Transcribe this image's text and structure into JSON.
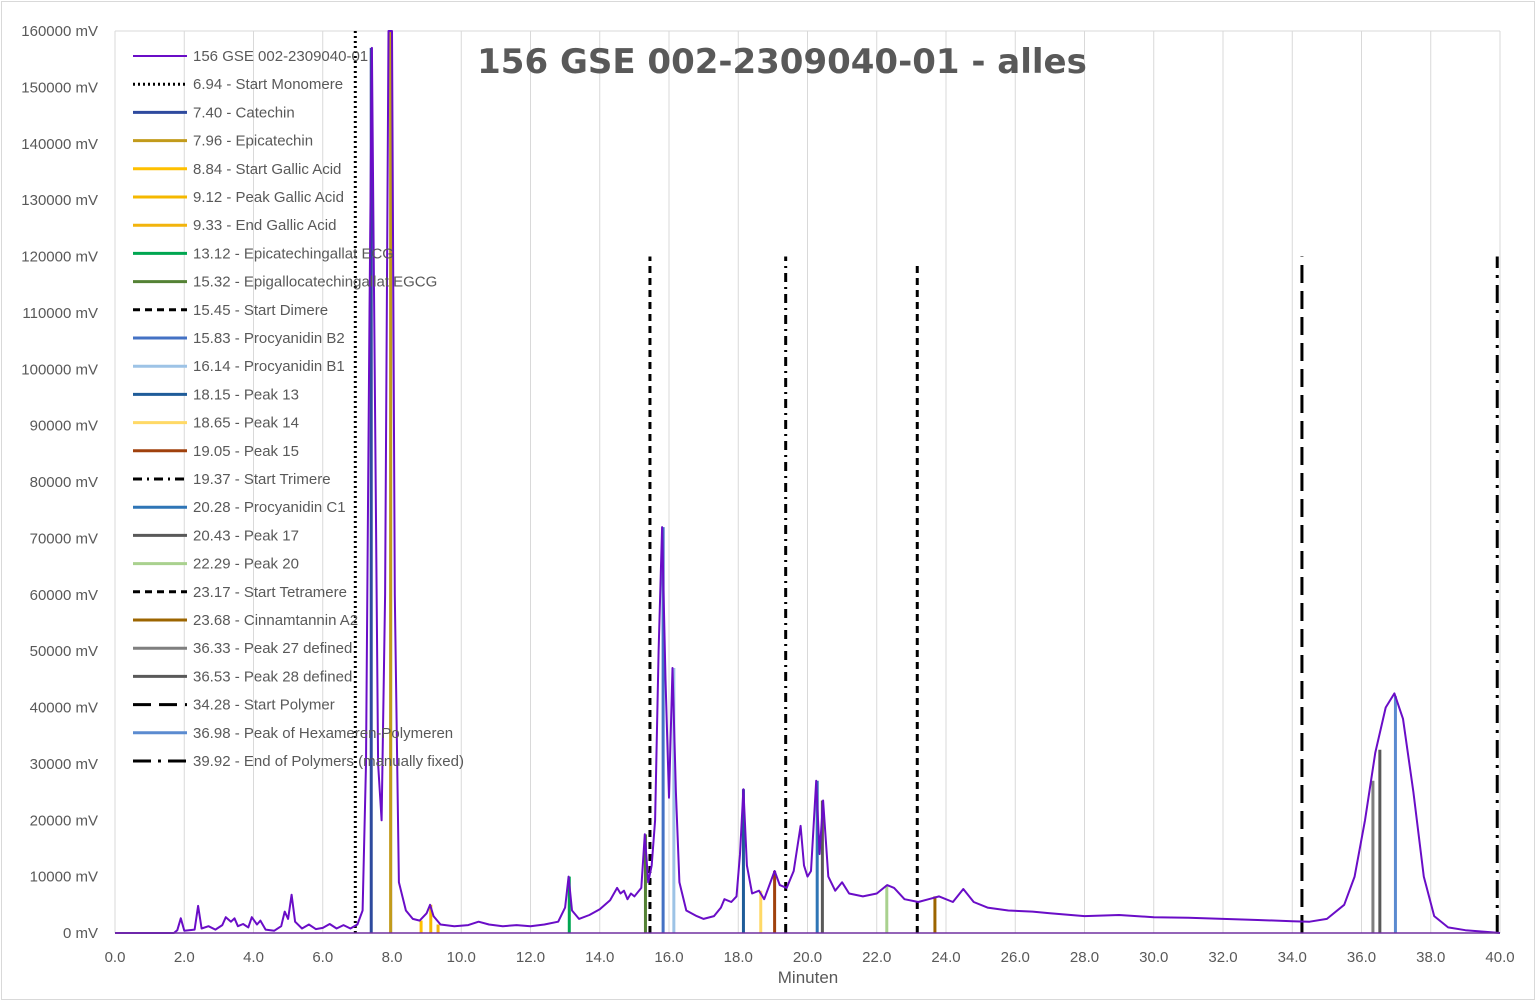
{
  "chart_data": {
    "type": "line",
    "title": "156 GSE 002-2309040-01 - alles",
    "xlabel": "Minuten",
    "ylabel": "",
    "xlim": [
      0,
      40
    ],
    "ylim": [
      0,
      160000
    ],
    "x_ticks": [
      "0.0",
      "2.0",
      "4.0",
      "6.0",
      "8.0",
      "10.0",
      "12.0",
      "14.0",
      "16.0",
      "18.0",
      "20.0",
      "22.0",
      "24.0",
      "26.0",
      "28.0",
      "30.0",
      "32.0",
      "34.0",
      "36.0",
      "38.0",
      "40.0"
    ],
    "y_ticks": [
      "0 mV",
      "10000 mV",
      "20000 mV",
      "30000 mV",
      "40000 mV",
      "50000 mV",
      "60000 mV",
      "70000 mV",
      "80000 mV",
      "90000 mV",
      "100000 mV",
      "110000 mV",
      "120000 mV",
      "130000 mV",
      "140000 mV",
      "150000 mV",
      "160000 mV"
    ],
    "grid": "vertical",
    "legend_position": "top-left",
    "chromatogram": {
      "name": "156 GSE 002-2309040-01",
      "color": "#6a0dc7",
      "points": [
        [
          0,
          0
        ],
        [
          1.7,
          0
        ],
        [
          1.8,
          500
        ],
        [
          1.9,
          2600
        ],
        [
          2.0,
          400
        ],
        [
          2.3,
          600
        ],
        [
          2.4,
          4800
        ],
        [
          2.5,
          800
        ],
        [
          2.7,
          1200
        ],
        [
          2.9,
          600
        ],
        [
          3.1,
          1400
        ],
        [
          3.2,
          2800
        ],
        [
          3.35,
          2000
        ],
        [
          3.45,
          2600
        ],
        [
          3.55,
          1200
        ],
        [
          3.7,
          1600
        ],
        [
          3.85,
          1000
        ],
        [
          3.95,
          2800
        ],
        [
          4.1,
          1500
        ],
        [
          4.2,
          2200
        ],
        [
          4.35,
          600
        ],
        [
          4.6,
          400
        ],
        [
          4.8,
          1200
        ],
        [
          4.9,
          3800
        ],
        [
          5.0,
          2500
        ],
        [
          5.1,
          6800
        ],
        [
          5.2,
          2000
        ],
        [
          5.4,
          800
        ],
        [
          5.6,
          1500
        ],
        [
          5.8,
          700
        ],
        [
          6.0,
          900
        ],
        [
          6.2,
          1600
        ],
        [
          6.4,
          800
        ],
        [
          6.6,
          1400
        ],
        [
          6.8,
          800
        ],
        [
          7.0,
          1500
        ],
        [
          7.15,
          4000
        ],
        [
          7.25,
          30000
        ],
        [
          7.35,
          110000
        ],
        [
          7.42,
          157000
        ],
        [
          7.5,
          100000
        ],
        [
          7.6,
          30000
        ],
        [
          7.7,
          20000
        ],
        [
          7.8,
          60000
        ],
        [
          7.9,
          160000
        ],
        [
          8.0,
          160000
        ],
        [
          8.08,
          60000
        ],
        [
          8.2,
          9000
        ],
        [
          8.4,
          4000
        ],
        [
          8.6,
          2500
        ],
        [
          8.8,
          2200
        ],
        [
          9.0,
          3500
        ],
        [
          9.1,
          5000
        ],
        [
          9.2,
          3000
        ],
        [
          9.4,
          1500
        ],
        [
          9.8,
          1200
        ],
        [
          10.2,
          1400
        ],
        [
          10.5,
          2000
        ],
        [
          10.8,
          1500
        ],
        [
          11.2,
          1200
        ],
        [
          11.6,
          1400
        ],
        [
          12.0,
          1200
        ],
        [
          12.4,
          1500
        ],
        [
          12.8,
          2000
        ],
        [
          13.0,
          4500
        ],
        [
          13.1,
          10000
        ],
        [
          13.2,
          4000
        ],
        [
          13.4,
          2500
        ],
        [
          13.7,
          3200
        ],
        [
          14.0,
          4200
        ],
        [
          14.3,
          5800
        ],
        [
          14.5,
          8000
        ],
        [
          14.6,
          7000
        ],
        [
          14.7,
          7500
        ],
        [
          14.8,
          6000
        ],
        [
          14.9,
          7000
        ],
        [
          15.0,
          6500
        ],
        [
          15.2,
          8000
        ],
        [
          15.3,
          17500
        ],
        [
          15.4,
          9000
        ],
        [
          15.5,
          12000
        ],
        [
          15.6,
          20000
        ],
        [
          15.7,
          50000
        ],
        [
          15.8,
          72000
        ],
        [
          15.9,
          45000
        ],
        [
          16.0,
          24000
        ],
        [
          16.1,
          47000
        ],
        [
          16.2,
          25000
        ],
        [
          16.3,
          9000
        ],
        [
          16.5,
          4000
        ],
        [
          16.8,
          3000
        ],
        [
          17.0,
          2500
        ],
        [
          17.3,
          3000
        ],
        [
          17.5,
          4500
        ],
        [
          17.6,
          6000
        ],
        [
          17.8,
          5500
        ],
        [
          17.95,
          6500
        ],
        [
          18.05,
          14000
        ],
        [
          18.15,
          25500
        ],
        [
          18.25,
          12000
        ],
        [
          18.4,
          7000
        ],
        [
          18.6,
          7500
        ],
        [
          18.75,
          6000
        ],
        [
          18.9,
          8500
        ],
        [
          19.05,
          11000
        ],
        [
          19.2,
          8500
        ],
        [
          19.4,
          8000
        ],
        [
          19.6,
          11000
        ],
        [
          19.8,
          19000
        ],
        [
          19.9,
          12000
        ],
        [
          20.0,
          10000
        ],
        [
          20.1,
          11000
        ],
        [
          20.25,
          27000
        ],
        [
          20.35,
          14000
        ],
        [
          20.45,
          23500
        ],
        [
          20.6,
          10000
        ],
        [
          20.8,
          7500
        ],
        [
          21.0,
          9000
        ],
        [
          21.2,
          7000
        ],
        [
          21.6,
          6500
        ],
        [
          22.0,
          7000
        ],
        [
          22.3,
          8500
        ],
        [
          22.5,
          8000
        ],
        [
          22.8,
          6000
        ],
        [
          23.2,
          5500
        ],
        [
          23.5,
          6000
        ],
        [
          23.8,
          6500
        ],
        [
          24.2,
          5500
        ],
        [
          24.5,
          7800
        ],
        [
          24.8,
          5500
        ],
        [
          25.2,
          4500
        ],
        [
          25.8,
          4000
        ],
        [
          26.5,
          3800
        ],
        [
          27.0,
          3500
        ],
        [
          28.0,
          3000
        ],
        [
          29.0,
          3200
        ],
        [
          30.0,
          2800
        ],
        [
          31.0,
          2700
        ],
        [
          32.0,
          2500
        ],
        [
          33.0,
          2300
        ],
        [
          34.0,
          2100
        ],
        [
          34.5,
          2000
        ],
        [
          35.0,
          2500
        ],
        [
          35.5,
          5000
        ],
        [
          35.8,
          10000
        ],
        [
          36.1,
          20000
        ],
        [
          36.4,
          32000
        ],
        [
          36.7,
          40000
        ],
        [
          36.95,
          42500
        ],
        [
          37.2,
          38000
        ],
        [
          37.5,
          25000
        ],
        [
          37.8,
          10000
        ],
        [
          38.1,
          3000
        ],
        [
          38.5,
          1000
        ],
        [
          39.0,
          500
        ],
        [
          39.6,
          200
        ],
        [
          40,
          0
        ]
      ]
    },
    "markers": [
      {
        "x": 6.94,
        "label": "6.94 - Start Monomere",
        "color": "#000000",
        "style": "dotted",
        "height": 160000
      },
      {
        "x": 7.4,
        "label": "7.40 - Catechin",
        "color": "#2e4a9e",
        "style": "solid",
        "height": 157000
      },
      {
        "x": 7.96,
        "label": "7.96 - Epicatechin",
        "color": "#c29b1b",
        "style": "solid",
        "height": 160000
      },
      {
        "x": 8.84,
        "label": "8.84 - Start Gallic Acid",
        "color": "#ffc000",
        "style": "solid",
        "height": 2200
      },
      {
        "x": 9.12,
        "label": "9.12 - Peak Gallic Acid",
        "color": "#f5b800",
        "style": "solid",
        "height": 5000
      },
      {
        "x": 9.33,
        "label": "9.33 - End Gallic Acid",
        "color": "#f2b40c",
        "style": "solid",
        "height": 1500
      },
      {
        "x": 13.12,
        "label": "13.12 - Epicatechingallat ECG",
        "color": "#00a651",
        "style": "solid",
        "height": 10000
      },
      {
        "x": 15.32,
        "label": "15.32 - Epigallocatechingallat EGCG",
        "color": "#548235",
        "style": "solid",
        "height": 17500
      },
      {
        "x": 15.45,
        "label": "15.45 - Start Dimere",
        "color": "#000000",
        "style": "dashed",
        "height": 120000
      },
      {
        "x": 15.83,
        "label": "15.83 - Procyanidin B2",
        "color": "#4472c4",
        "style": "solid",
        "height": 72000
      },
      {
        "x": 16.14,
        "label": "16.14 - Procyanidin B1",
        "color": "#9dc3e6",
        "style": "solid",
        "height": 47000
      },
      {
        "x": 18.15,
        "label": "18.15 - Peak 13",
        "color": "#1f5c99",
        "style": "solid",
        "height": 25500
      },
      {
        "x": 18.65,
        "label": "18.65 - Peak 14",
        "color": "#ffd966",
        "style": "solid",
        "height": 7500
      },
      {
        "x": 19.05,
        "label": "19.05 - Peak 15",
        "color": "#a0410d",
        "style": "solid",
        "height": 11000
      },
      {
        "x": 19.37,
        "label": "19.37 - Start Trimere",
        "color": "#000000",
        "style": "dashdot",
        "height": 120000
      },
      {
        "x": 20.28,
        "label": "20.28 - Procyanidin C1",
        "color": "#2e75b6",
        "style": "solid",
        "height": 27000
      },
      {
        "x": 20.43,
        "label": "20.43 - Peak 17",
        "color": "#595959",
        "style": "solid",
        "height": 23500
      },
      {
        "x": 22.29,
        "label": "22.29 - Peak 20",
        "color": "#a9d18e",
        "style": "solid",
        "height": 8500
      },
      {
        "x": 23.17,
        "label": "23.17 - Start Tetramere",
        "color": "#000000",
        "style": "dashed",
        "height": 119000
      },
      {
        "x": 23.68,
        "label": "23.68 - Cinnamtannin A2",
        "color": "#9c6500",
        "style": "solid",
        "height": 6500
      },
      {
        "x": 36.33,
        "label": "36.33 - Peak 27 defined",
        "color": "#7f7f7f",
        "style": "solid",
        "height": 27000
      },
      {
        "x": 36.53,
        "label": "36.53 - Peak 28 defined",
        "color": "#595959",
        "style": "solid",
        "height": 32500
      },
      {
        "x": 34.28,
        "label": "34.28 - Start Polymer",
        "color": "#000000",
        "style": "longdash",
        "height": 120000
      },
      {
        "x": 36.98,
        "label": "36.98 - Peak of Hexameren-Polymeren",
        "color": "#5b8bd0",
        "style": "solid",
        "height": 42000
      },
      {
        "x": 39.92,
        "label": "39.92 - End of Polymers (manually fixed)",
        "color": "#000000",
        "style": "longdashdot",
        "height": 120000
      }
    ]
  }
}
